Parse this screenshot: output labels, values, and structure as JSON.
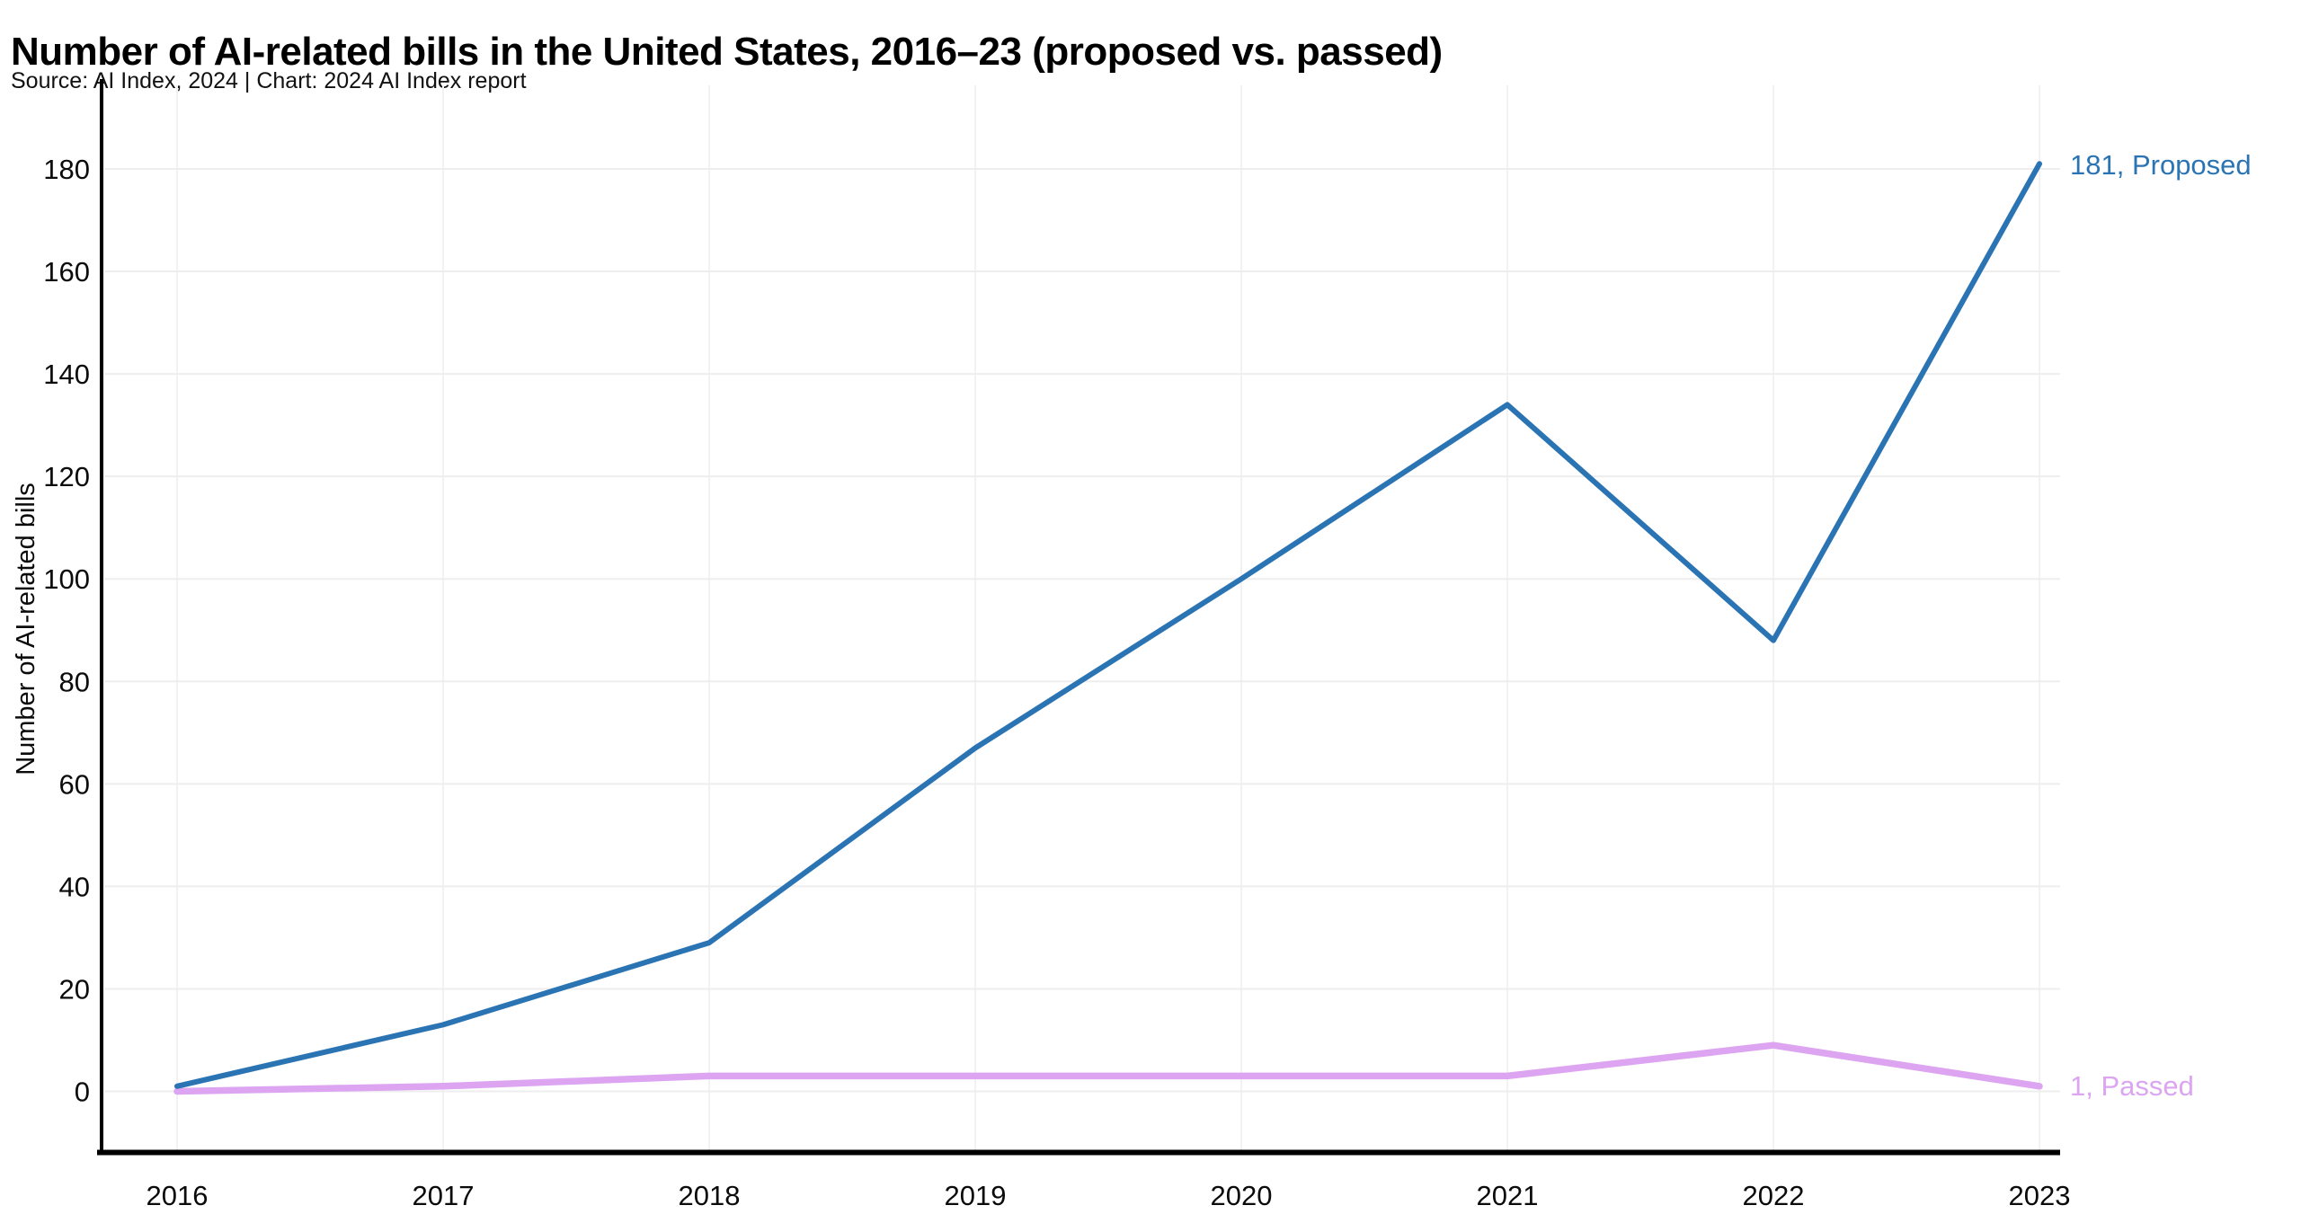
{
  "header": {
    "title": "Number of AI-related bills in the United States, 2016–23 (proposed vs. passed)",
    "subtitle": "Source: AI Index, 2024 | Chart: 2024 AI Index report"
  },
  "chart_data": {
    "type": "line",
    "title": "Number of AI-related bills in the United States, 2016–23 (proposed vs. passed)",
    "subtitle": "Source: AI Index, 2024 | Chart: 2024 AI Index report",
    "x": [
      2016,
      2017,
      2018,
      2019,
      2020,
      2021,
      2022,
      2023
    ],
    "series": [
      {
        "name": "Proposed",
        "color": "#2b74b4",
        "values": [
          1,
          13,
          29,
          67,
          100,
          134,
          88,
          181
        ],
        "end_label": "181, Proposed"
      },
      {
        "name": "Passed",
        "color": "#dca4f1",
        "values": [
          0,
          1,
          3,
          3,
          3,
          3,
          9,
          1
        ],
        "end_label": "1, Passed"
      }
    ],
    "xlabel": "",
    "ylabel": "Number of AI-related bills",
    "ylim": [
      0,
      180
    ],
    "yticks": [
      0,
      20,
      40,
      60,
      80,
      100,
      120,
      140,
      160,
      180
    ],
    "grid": true,
    "legend_position": "end-of-line",
    "colors": {
      "axis": "#000000",
      "grid_horizontal": "#eeeeee",
      "grid_vertical": "#f2f2f2",
      "tick_text": "#0b0b0b"
    }
  }
}
